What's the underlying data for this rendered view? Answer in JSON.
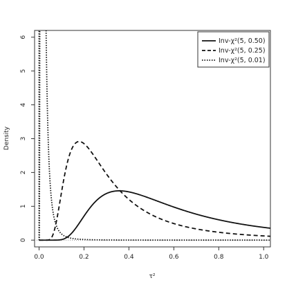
{
  "chart_data": {
    "type": "line",
    "title": "",
    "xlabel": "τ²",
    "ylabel": "Density",
    "xlim": [
      -0.02,
      1.03
    ],
    "ylim": [
      -0.2,
      6.2
    ],
    "xticks": [
      0.0,
      0.2,
      0.4,
      0.6,
      0.8,
      1.0
    ],
    "xtick_labels": [
      "0.0",
      "0.2",
      "0.4",
      "0.6",
      "0.8",
      "1.0"
    ],
    "yticks": [
      0,
      1,
      2,
      3,
      4,
      5,
      6
    ],
    "ytick_labels": [
      "0",
      "1",
      "2",
      "3",
      "4",
      "5",
      "6"
    ],
    "grid": false,
    "legend_position": "top-right",
    "distribution": {
      "family": "scaled-inverse-chi-squared",
      "df": 5
    },
    "series": [
      {
        "name": "Inv-χ²(5, 0.50)",
        "scale": 0.5,
        "style": "solid"
      },
      {
        "name": "Inv-χ²(5, 0.25)",
        "scale": 0.25,
        "style": "dashed"
      },
      {
        "name": "Inv-χ²(5, 0.01)",
        "scale": 0.01,
        "style": "dotted"
      }
    ],
    "baseline_style": "dotted-gray"
  }
}
